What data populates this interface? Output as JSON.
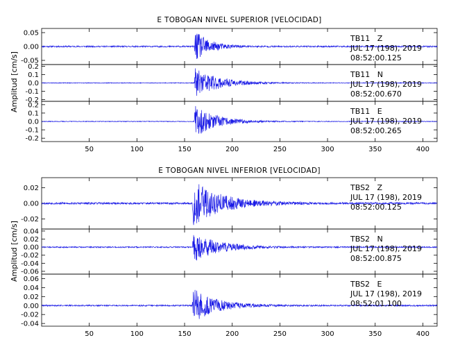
{
  "chart_data": [
    {
      "type": "line",
      "title": "E TOBOGAN NIVEL SUPERIOR [VELOCIDAD]",
      "ylabel": "Amplitud [cm/s]",
      "xlim": [
        0,
        415
      ],
      "xticks": [
        "50",
        "100",
        "150",
        "200",
        "250",
        "300",
        "350",
        "400"
      ],
      "xtick_values": [
        50,
        100,
        150,
        200,
        250,
        300,
        350,
        400
      ],
      "series": [
        {
          "name": "TB11   Z",
          "date": "JUL 17 (198), 2019",
          "time": "08:52:00.125",
          "ylim": [
            -0.065,
            0.065
          ],
          "yticks": [
            "0.05",
            "0.00",
            "-0.05"
          ],
          "ytick_values": [
            0.05,
            0.0,
            -0.05
          ],
          "onset": 160,
          "peak": 0.06,
          "decay": 15,
          "noise": 0.0025,
          "seed": 11
        },
        {
          "name": "TB11   N",
          "date": "JUL 17 (198), 2019",
          "time": "08:52:00.670",
          "ylim": [
            -0.22,
            0.22
          ],
          "yticks": [
            "0.2",
            "0.1",
            "0.0",
            "-0.1",
            "-0.2"
          ],
          "ytick_values": [
            0.2,
            0.1,
            0.0,
            -0.1,
            -0.2
          ],
          "onset": 160,
          "peak": 0.19,
          "decay": 24,
          "noise": 0.004,
          "seed": 23
        },
        {
          "name": "TB11   E",
          "date": "JUL 17 (198), 2019",
          "time": "08:52:00.265",
          "ylim": [
            -0.24,
            0.24
          ],
          "yticks": [
            "0.2",
            "0.1",
            "0.0",
            "-0.1",
            "-0.2"
          ],
          "ytick_values": [
            0.2,
            0.1,
            0.0,
            -0.1,
            -0.2
          ],
          "onset": 160,
          "peak": 0.2,
          "decay": 22,
          "noise": 0.004,
          "seed": 37
        }
      ],
      "color": "#1a1ae6"
    },
    {
      "type": "line",
      "title": "E TOBOGAN NIVEL INFERIOR [VELOCIDAD]",
      "ylabel": "Amplitud [cm/s]",
      "xlim": [
        0,
        415
      ],
      "xticks": [
        "50",
        "100",
        "150",
        "200",
        "250",
        "300",
        "350",
        "400"
      ],
      "xtick_values": [
        50,
        100,
        150,
        200,
        250,
        300,
        350,
        400
      ],
      "series": [
        {
          "name": "TBS2   Z",
          "date": "JUL 17 (198), 2019",
          "time": "08:52:00.125",
          "ylim": [
            -0.033,
            0.033
          ],
          "yticks": [
            "0.02",
            "0.00",
            "-0.02"
          ],
          "ytick_values": [
            0.02,
            0.0,
            -0.02
          ],
          "onset": 158,
          "peak": 0.03,
          "decay": 30,
          "noise": 0.0012,
          "seed": 53
        },
        {
          "name": "TBS2   N",
          "date": "JUL 17 (198), 2019",
          "time": "08:52:00.875",
          "ylim": [
            -0.067,
            0.045
          ],
          "yticks": [
            "0.04",
            "0.02",
            "0.00",
            "-0.02",
            "-0.04",
            "-0.06"
          ],
          "ytick_values": [
            0.04,
            0.02,
            0.0,
            -0.02,
            -0.04,
            -0.06
          ],
          "onset": 158,
          "peak": 0.038,
          "decay": 26,
          "noise": 0.0015,
          "seed": 71
        },
        {
          "name": "TBS2   E",
          "date": "JUL 17 (198), 2019",
          "time": "08:52:01.100",
          "ylim": [
            -0.046,
            0.07
          ],
          "yticks": [
            "0.06",
            "0.04",
            "0.02",
            "0.00",
            "-0.02",
            "-0.04"
          ],
          "ytick_values": [
            0.06,
            0.04,
            0.02,
            0.0,
            -0.02,
            -0.04
          ],
          "onset": 158,
          "peak": 0.04,
          "decay": 24,
          "noise": 0.0015,
          "seed": 89
        }
      ],
      "color": "#1a1ae6"
    }
  ]
}
